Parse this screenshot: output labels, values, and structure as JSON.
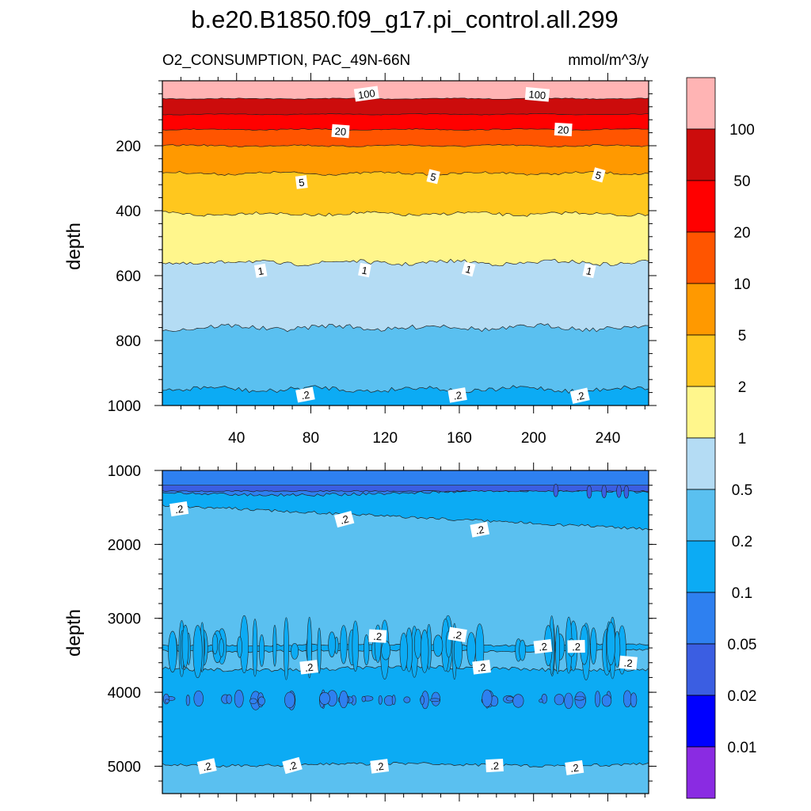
{
  "chart_data": [
    {
      "type": "contour",
      "panel": "upper",
      "title": "b.e20.B1850.f09_g17.pi_control.all.299",
      "left_subtitle": "O2_CONSUMPTION, PAC_49N-66N",
      "right_subtitle": "mmol/m^3/y",
      "xlabel": "",
      "ylabel": "depth",
      "xlim": [
        0,
        262
      ],
      "ylim": [
        1000,
        0
      ],
      "x_ticks": [
        40,
        80,
        120,
        160,
        200,
        240
      ],
      "x_tick_labels": [
        "40",
        "80",
        "120",
        "160",
        "200",
        "240"
      ],
      "y_ticks": [
        200,
        400,
        600,
        800,
        1000
      ],
      "y_tick_labels": [
        "200",
        "400",
        "600",
        "800",
        "1000"
      ],
      "contours": [
        {
          "level": 100,
          "mean_depth": 55,
          "var": 2
        },
        {
          "level": 50,
          "mean_depth": 103,
          "var": 2
        },
        {
          "level": 20,
          "mean_depth": 150,
          "var": 2.5
        },
        {
          "level": 10,
          "mean_depth": 200,
          "var": 4
        },
        {
          "level": 5,
          "mean_depth": 285,
          "var": 6
        },
        {
          "level": 2,
          "mean_depth": 410,
          "var": 8
        },
        {
          "level": 1,
          "mean_depth": 560,
          "var": 10
        },
        {
          "level": 0.5,
          "mean_depth": 760,
          "var": 12
        },
        {
          "level": 0.2,
          "mean_depth": 950,
          "var": 12
        }
      ],
      "contour_labels": [
        {
          "text": "100",
          "x": 110,
          "depth": 40
        },
        {
          "text": "100",
          "x": 202,
          "depth": 42
        },
        {
          "text": "20",
          "x": 96,
          "depth": 155
        },
        {
          "text": "20",
          "x": 216,
          "depth": 150
        },
        {
          "text": "5",
          "x": 75,
          "depth": 312
        },
        {
          "text": "5",
          "x": 146,
          "depth": 295
        },
        {
          "text": "5",
          "x": 235,
          "depth": 290
        },
        {
          "text": "1",
          "x": 53,
          "depth": 585
        },
        {
          "text": "1",
          "x": 109,
          "depth": 583
        },
        {
          "text": "1",
          "x": 165,
          "depth": 580
        },
        {
          "text": "1",
          "x": 230,
          "depth": 585
        },
        {
          "text": ".2",
          "x": 77,
          "depth": 967
        },
        {
          "text": ".2",
          "x": 159,
          "depth": 968
        },
        {
          "text": ".2",
          "x": 225,
          "depth": 970
        }
      ]
    },
    {
      "type": "contour",
      "panel": "lower",
      "xlabel": "",
      "ylabel": "depth",
      "xlim": [
        0,
        262
      ],
      "ylim": [
        5370,
        1000
      ],
      "x_ticks": [
        40,
        80,
        120,
        160,
        200,
        240
      ],
      "y_ticks": [
        1000,
        2000,
        3000,
        4000,
        5000
      ],
      "y_tick_labels": [
        "1000",
        "2000",
        "3000",
        "4000",
        "5000"
      ],
      "contour_labels": [
        {
          "text": ".2",
          "x": 9,
          "depth": 1520
        },
        {
          "text": ".2",
          "x": 98,
          "depth": 1660
        },
        {
          "text": ".2",
          "x": 171,
          "depth": 1800
        },
        {
          "text": ".2",
          "x": 116,
          "depth": 3240
        },
        {
          "text": ".2",
          "x": 159,
          "depth": 3220
        },
        {
          "text": ".2",
          "x": 205,
          "depth": 3380
        },
        {
          "text": ".2",
          "x": 223,
          "depth": 3380
        },
        {
          "text": ".2",
          "x": 251,
          "depth": 3600
        },
        {
          "text": ".2",
          "x": 79,
          "depth": 3660
        },
        {
          "text": ".2",
          "x": 172,
          "depth": 3660
        },
        {
          "text": ".2",
          "x": 24,
          "depth": 5000
        },
        {
          "text": ".2",
          "x": 70,
          "depth": 4990
        },
        {
          "text": ".2",
          "x": 117,
          "depth": 5000
        },
        {
          "text": ".2",
          "x": 179,
          "depth": 4990
        },
        {
          "text": ".2",
          "x": 222,
          "depth": 5020
        }
      ]
    }
  ],
  "colorbar": {
    "levels": [
      "100",
      "50",
      "20",
      "10",
      "5",
      "2",
      "1",
      "0.5",
      "0.2",
      "0.1",
      "0.05",
      "0.02",
      "0.01"
    ],
    "colors": [
      "#ffb4b4",
      "#cc0c0c",
      "#ff0000",
      "#ff5500",
      "#ff9900",
      "#ffc71e",
      "#fff68c",
      "#b4dcf4",
      "#5ac0f0",
      "#0cabf4",
      "#2e80f0",
      "#3b5ee2",
      "#0000ff",
      "#8a2be2"
    ]
  }
}
